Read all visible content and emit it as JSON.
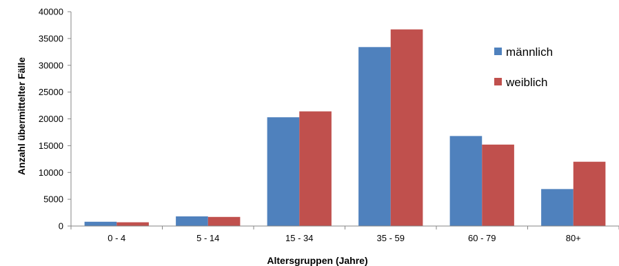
{
  "chart_data": {
    "type": "bar",
    "title": "",
    "xlabel": "Altersgruppen (Jahre)",
    "ylabel": "Anzahl übermittelter Fälle",
    "ylim": [
      0,
      40000
    ],
    "yticks": [
      "0",
      "5000",
      "10000",
      "15000",
      "20000",
      "25000",
      "30000",
      "35000",
      "40000"
    ],
    "categories": [
      "0 - 4",
      "5 - 14",
      "15 - 34",
      "35 - 59",
      "60 - 79",
      "80+"
    ],
    "series": [
      {
        "name": "männlich",
        "color": "#4f81bd",
        "values": [
          800,
          1800,
          20300,
          33400,
          16800,
          6900
        ]
      },
      {
        "name": "weiblich",
        "color": "#c0504d",
        "values": [
          700,
          1700,
          21400,
          36700,
          15200,
          12000
        ]
      }
    ],
    "grid": false,
    "legend_position": "top-right"
  }
}
